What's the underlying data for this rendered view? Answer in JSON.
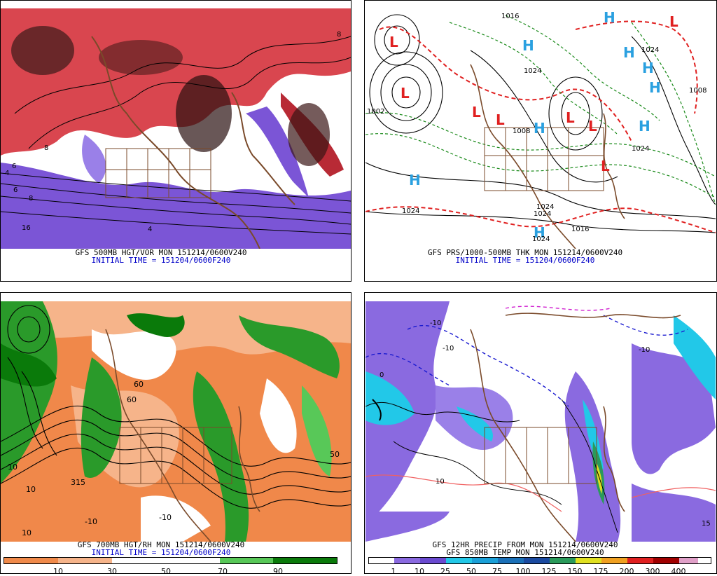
{
  "panels": {
    "tl": {
      "caption1": "GFS 500MB HGT/VOR MON 151214/0600V240",
      "caption2": "INITIAL TIME = 151204/0600F240",
      "map_labels": [
        "4",
        "6",
        "8",
        "6",
        "16",
        "4",
        "8",
        "8"
      ]
    },
    "tr": {
      "caption1": "GFS PRS/1000-500MB THK MON 151214/0600V240",
      "caption2": "INITIAL TIME = 151204/0600F240",
      "highs": [
        "H",
        "H",
        "H",
        "H",
        "H",
        "H",
        "H",
        "H",
        "H"
      ],
      "lows": [
        "L",
        "L",
        "L",
        "L",
        "L",
        "L",
        "L",
        "L"
      ],
      "isobar_labels": [
        "1016",
        "1024",
        "1008",
        "1024",
        "1024",
        "1024",
        "1024",
        "1016",
        "1024",
        "1002",
        "1008",
        "1024"
      ]
    },
    "bl": {
      "caption1": "GFS 700MB HGT/RH MON 151214/0600V240",
      "caption2": "INITIAL TIME = 151204/0600F240",
      "map_labels": [
        "10",
        "10",
        "-10",
        "10",
        "315",
        "-10",
        "60",
        "60",
        "50"
      ],
      "scale_labels": [
        "10",
        "30",
        "50",
        "70",
        "90"
      ]
    },
    "br": {
      "caption1": "GFS 12HR PRECIP FROM MON 151214/0600V240",
      "caption2": "GFS 850MB TEMP MON 151214/0600V240",
      "map_labels": [
        "-10",
        "-10",
        "10",
        "-10",
        "15",
        "0"
      ],
      "scale_labels": [
        "1",
        "10",
        "25",
        "50",
        "75",
        "100",
        "125",
        "150",
        "175",
        "200",
        "300",
        "400"
      ]
    }
  },
  "colors": {
    "vort_red": "#d9464f",
    "vort_purple": "#7b55d6",
    "coast": "#7a4a2a",
    "rh_orange": "#f0884a",
    "rh_green": "#2a9a2a",
    "precip_purple": "#8a6ae0",
    "precip_cyan": "#22c8e8",
    "high_blue": "#2aa0e0",
    "low_red": "#e02020",
    "caption_blue": "#0000c8"
  },
  "scales": {
    "bl_colors": [
      "#f08a4a",
      "#f6b48a",
      "#ffffff",
      "#ffffff",
      "#58c858",
      "#2aa02a",
      "#0a7a0a"
    ],
    "br_colors": [
      "#ffffff",
      "#8a6ae0",
      "#6a4ad0",
      "#22c8e8",
      "#1aa0d8",
      "#1a70b8",
      "#1a4aa0",
      "#2a9a5a",
      "#e0e020",
      "#f0a020",
      "#e02020",
      "#a00000",
      "#e0a0c8"
    ]
  }
}
